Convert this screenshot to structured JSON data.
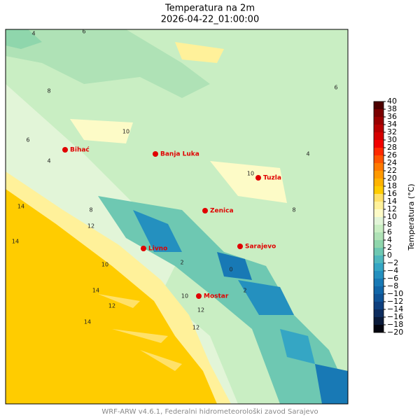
{
  "title": "Temperatura na 2m",
  "subtitle": "2026-04-22_01:00:00",
  "map": {
    "cities": [
      "Bihać",
      "Banja Luka",
      "Tuzla",
      "Zenica",
      "Sarajevo",
      "Livno",
      "Mostar"
    ],
    "contour_labels": [
      4,
      6,
      8,
      4,
      10,
      8,
      6,
      10,
      14,
      14,
      12,
      10,
      2,
      0,
      2,
      10,
      12,
      14,
      12,
      14,
      12,
      6,
      4,
      8
    ]
  },
  "colorbar": {
    "label": "Temperatura (°C)",
    "lim": [
      -20,
      40
    ],
    "ticks": [
      {
        "value": -20,
        "label": "−20"
      },
      {
        "value": -18,
        "label": "−18"
      },
      {
        "value": -16,
        "label": "−16"
      },
      {
        "value": -14,
        "label": "−14"
      },
      {
        "value": -12,
        "label": "−12"
      },
      {
        "value": -10,
        "label": "−10"
      },
      {
        "value": -8,
        "label": "−8"
      },
      {
        "value": -6,
        "label": "−6"
      },
      {
        "value": -4,
        "label": "−4"
      },
      {
        "value": -2,
        "label": "−2"
      },
      0,
      2,
      4,
      6,
      8,
      10,
      12,
      14,
      16,
      18,
      20,
      22,
      24,
      26,
      28,
      30,
      32,
      34,
      36,
      38,
      40
    ],
    "colors": [
      "#03050f",
      "#0a1a3a",
      "#0d2c5e",
      "#0e3f7e",
      "#0f5396",
      "#1166a8",
      "#1879b5",
      "#2490bf",
      "#35a6c4",
      "#4fb8bd",
      "#6ec8b2",
      "#8fd6ac",
      "#afe2b6",
      "#c9eec3",
      "#e2f5d8",
      "#fdfbc7",
      "#fff19a",
      "#ffe169",
      "#ffcc00",
      "#ffb300",
      "#ff9900",
      "#ff7a00",
      "#ff5500",
      "#ff2a00",
      "#f20000",
      "#d60000",
      "#b80000",
      "#990000",
      "#7a0000",
      "#4d0000"
    ]
  },
  "footer": "WRF-ARW v4.6.1, Federalni hidrometeorološki zavod Sarajevo"
}
